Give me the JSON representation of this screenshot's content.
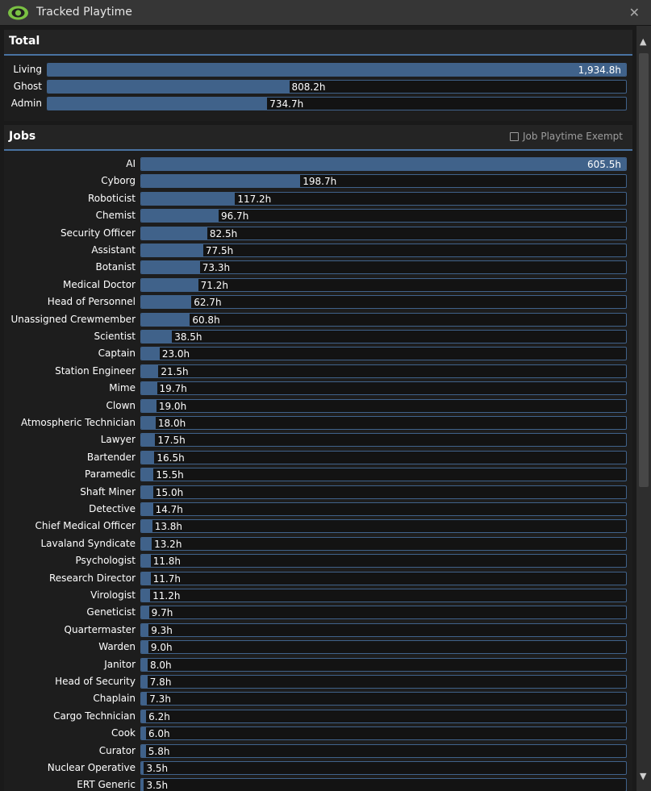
{
  "window": {
    "title": "Tracked Playtime",
    "icon": "eye-icon",
    "close_icon": "close-icon",
    "accent_color": "#40628a",
    "icon_color": "#7ac143"
  },
  "total": {
    "title": "Total",
    "max_hours": 1934.8,
    "rows": [
      {
        "label": "Living",
        "hours": 1934.8,
        "value_text": "1,934.8h"
      },
      {
        "label": "Ghost",
        "hours": 808.2,
        "value_text": "808.2h"
      },
      {
        "label": "Admin",
        "hours": 734.7,
        "value_text": "734.7h"
      }
    ]
  },
  "jobs": {
    "title": "Jobs",
    "exempt_label": "Job Playtime Exempt",
    "exempt_checked": false,
    "max_hours": 605.5,
    "rows": [
      {
        "label": "AI",
        "hours": 605.5,
        "value_text": "605.5h"
      },
      {
        "label": "Cyborg",
        "hours": 198.7,
        "value_text": "198.7h"
      },
      {
        "label": "Roboticist",
        "hours": 117.2,
        "value_text": "117.2h"
      },
      {
        "label": "Chemist",
        "hours": 96.7,
        "value_text": "96.7h"
      },
      {
        "label": "Security Officer",
        "hours": 82.5,
        "value_text": "82.5h"
      },
      {
        "label": "Assistant",
        "hours": 77.5,
        "value_text": "77.5h"
      },
      {
        "label": "Botanist",
        "hours": 73.3,
        "value_text": "73.3h"
      },
      {
        "label": "Medical Doctor",
        "hours": 71.2,
        "value_text": "71.2h"
      },
      {
        "label": "Head of Personnel",
        "hours": 62.7,
        "value_text": "62.7h"
      },
      {
        "label": "Unassigned Crewmember",
        "hours": 60.8,
        "value_text": "60.8h"
      },
      {
        "label": "Scientist",
        "hours": 38.5,
        "value_text": "38.5h"
      },
      {
        "label": "Captain",
        "hours": 23.0,
        "value_text": "23.0h"
      },
      {
        "label": "Station Engineer",
        "hours": 21.5,
        "value_text": "21.5h"
      },
      {
        "label": "Mime",
        "hours": 19.7,
        "value_text": "19.7h"
      },
      {
        "label": "Clown",
        "hours": 19.0,
        "value_text": "19.0h"
      },
      {
        "label": "Atmospheric Technician",
        "hours": 18.0,
        "value_text": "18.0h"
      },
      {
        "label": "Lawyer",
        "hours": 17.5,
        "value_text": "17.5h"
      },
      {
        "label": "Bartender",
        "hours": 16.5,
        "value_text": "16.5h"
      },
      {
        "label": "Paramedic",
        "hours": 15.5,
        "value_text": "15.5h"
      },
      {
        "label": "Shaft Miner",
        "hours": 15.0,
        "value_text": "15.0h"
      },
      {
        "label": "Detective",
        "hours": 14.7,
        "value_text": "14.7h"
      },
      {
        "label": "Chief Medical Officer",
        "hours": 13.8,
        "value_text": "13.8h"
      },
      {
        "label": "Lavaland Syndicate",
        "hours": 13.2,
        "value_text": "13.2h"
      },
      {
        "label": "Psychologist",
        "hours": 11.8,
        "value_text": "11.8h"
      },
      {
        "label": "Research Director",
        "hours": 11.7,
        "value_text": "11.7h"
      },
      {
        "label": "Virologist",
        "hours": 11.2,
        "value_text": "11.2h"
      },
      {
        "label": "Geneticist",
        "hours": 9.7,
        "value_text": "9.7h"
      },
      {
        "label": "Quartermaster",
        "hours": 9.3,
        "value_text": "9.3h"
      },
      {
        "label": "Warden",
        "hours": 9.0,
        "value_text": "9.0h"
      },
      {
        "label": "Janitor",
        "hours": 8.0,
        "value_text": "8.0h"
      },
      {
        "label": "Head of Security",
        "hours": 7.8,
        "value_text": "7.8h"
      },
      {
        "label": "Chaplain",
        "hours": 7.3,
        "value_text": "7.3h"
      },
      {
        "label": "Cargo Technician",
        "hours": 6.2,
        "value_text": "6.2h"
      },
      {
        "label": "Cook",
        "hours": 6.0,
        "value_text": "6.0h"
      },
      {
        "label": "Curator",
        "hours": 5.8,
        "value_text": "5.8h"
      },
      {
        "label": "Nuclear Operative",
        "hours": 3.5,
        "value_text": "3.5h"
      },
      {
        "label": "ERT Generic",
        "hours": 3.5,
        "value_text": "3.5h"
      }
    ]
  }
}
